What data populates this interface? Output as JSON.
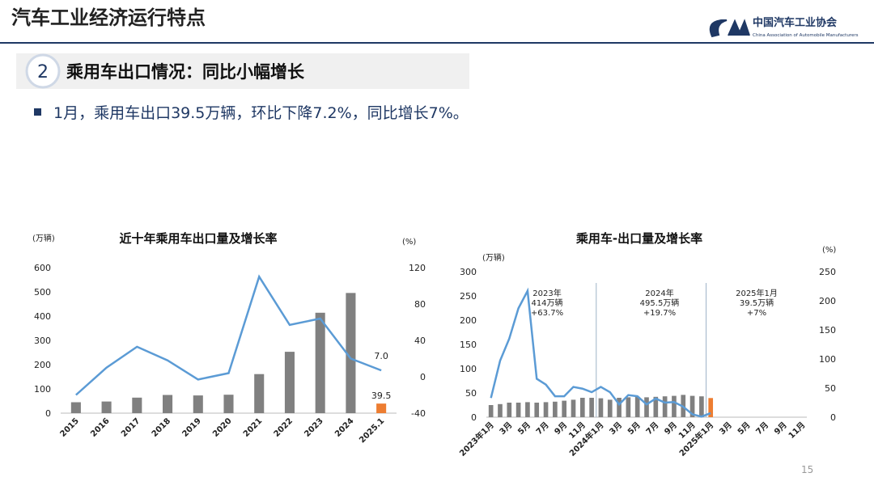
{
  "header": {
    "title": "汽车工业经济运行特点",
    "org": "中国汽车工业协会",
    "org_en": "China Association of Automobile Manufacturers",
    "section_number": "2",
    "section_title": "乘用车出口情况：同比小幅增长",
    "bullet": "1月，乘用车出口39.5万辆，环比下降7.2%，同比增长7%。",
    "page_number": "15"
  },
  "chart_data": [
    {
      "type": "bar",
      "title": "近十年乘用车出口量及增长率",
      "y_label": "(万辆)",
      "y2_label": "(%)",
      "categories": [
        "2015",
        "2016",
        "2017",
        "2018",
        "2019",
        "2020",
        "2021",
        "2022",
        "2023",
        "2024",
        "2025.1"
      ],
      "series": [
        {
          "color": "#808080",
          "colors": [
            "#808080",
            "#808080",
            "#808080",
            "#808080",
            "#808080",
            "#808080",
            "#808080",
            "#808080",
            "#808080",
            "#808080",
            "#ed7d31"
          ],
          "values": [
            45,
            48,
            64,
            75,
            73,
            76,
            161,
            253,
            414,
            495.5,
            39.5
          ],
          "value_labels": [
            null,
            null,
            null,
            null,
            null,
            null,
            null,
            null,
            null,
            null,
            "39.5"
          ]
        },
        {
          "type": "line",
          "axis": "y2",
          "color": "#5b9bd5",
          "values": [
            -20,
            10,
            33,
            18,
            -3,
            4,
            110,
            57,
            64,
            20,
            7
          ],
          "value_labels": [
            null,
            null,
            null,
            null,
            null,
            null,
            null,
            null,
            null,
            null,
            "7.0"
          ]
        }
      ],
      "ylim": [
        0,
        600
      ],
      "yticks": [
        0,
        100,
        200,
        300,
        400,
        500,
        600
      ],
      "y2lim": [
        -40,
        120
      ],
      "y2ticks": [
        -40,
        0,
        40,
        80,
        120
      ]
    },
    {
      "type": "bar",
      "title": "乘用车-出口量及增长率",
      "y_label": "(万辆)",
      "y2_label": "(%)",
      "categories": [
        "2023年1月",
        null,
        "3月",
        null,
        "5月",
        null,
        "7月",
        null,
        "9月",
        null,
        "11月",
        null,
        "2024年1月",
        null,
        "3月",
        null,
        "5月",
        null,
        "7月",
        null,
        "9月",
        null,
        "11月",
        null,
        "2025年1月",
        null,
        "3月",
        null,
        "5月",
        null,
        "7月",
        null,
        "9月",
        null,
        "11月"
      ],
      "series": [
        {
          "color": "#808080",
          "colors": [
            "#808080",
            "#808080",
            "#808080",
            "#808080",
            "#808080",
            "#808080",
            "#808080",
            "#808080",
            "#808080",
            "#808080",
            "#808080",
            "#808080",
            "#808080",
            "#808080",
            "#808080",
            "#808080",
            "#808080",
            "#808080",
            "#808080",
            "#808080",
            "#808080",
            "#808080",
            "#808080",
            "#808080",
            "#ed7d31",
            "#808080",
            "#808080",
            "#808080",
            "#808080",
            "#808080",
            "#808080",
            "#808080",
            "#808080",
            "#808080",
            "#808080"
          ],
          "values": [
            25,
            27,
            30,
            30,
            31,
            30,
            31,
            32,
            34,
            36,
            40,
            40,
            39,
            36,
            40,
            41,
            42,
            41,
            42,
            43,
            44,
            46,
            44,
            43,
            39.5,
            null,
            null,
            null,
            null,
            null,
            null,
            null,
            null,
            null,
            null
          ]
        },
        {
          "type": "line",
          "axis": "y2",
          "color": "#5b9bd5",
          "values": [
            33,
            97,
            135,
            187,
            217,
            66,
            56,
            36,
            36,
            52,
            49,
            43,
            52,
            43,
            22,
            38,
            36,
            22,
            32,
            25,
            26,
            18,
            5,
            1,
            7,
            null,
            null,
            null,
            null,
            null,
            null,
            null,
            null,
            null,
            null
          ]
        }
      ],
      "annotations": [
        [
          "2023年",
          "414万辆",
          "+63.7%"
        ],
        [
          "2024年",
          "495.5万辆",
          "+19.7%"
        ],
        [
          "2025年1月",
          "39.5万辆",
          "+7%"
        ]
      ],
      "ylim": [
        0,
        300
      ],
      "yticks": [
        0,
        50,
        100,
        150,
        200,
        250,
        300
      ],
      "y2lim": [
        0,
        250
      ],
      "y2ticks": [
        0,
        50,
        100,
        150,
        200,
        250
      ]
    }
  ]
}
